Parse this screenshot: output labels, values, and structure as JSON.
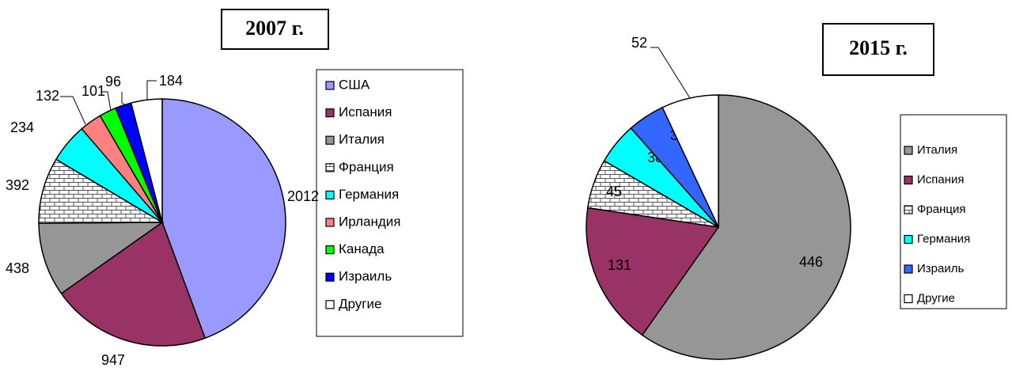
{
  "chart_data": [
    {
      "type": "pie",
      "title": "2007 г.",
      "categories": [
        "США",
        "Испания",
        "Италия",
        "Франция",
        "Германия",
        "Ирландия",
        "Канада",
        "Израиль",
        "Другие"
      ],
      "values": [
        2012,
        947,
        438,
        392,
        234,
        132,
        101,
        96,
        184
      ],
      "colors": [
        "#9999ff",
        "#993366",
        "#969696",
        "brick",
        "#00ffff",
        "#ff8080",
        "#00ff00",
        "#0000ff",
        "#ffffff"
      ],
      "legend": "right"
    },
    {
      "type": "pie",
      "title": "2015 г.",
      "categories": [
        "Италия",
        "Испания",
        "Франция",
        "Германия",
        "Израиль",
        "Другие"
      ],
      "values": [
        446,
        131,
        45,
        38,
        34,
        52
      ],
      "colors": [
        "#969696",
        "#993366",
        "brick",
        "#00ffff",
        "#3366ff",
        "#ffffff"
      ],
      "legend": "right"
    }
  ]
}
